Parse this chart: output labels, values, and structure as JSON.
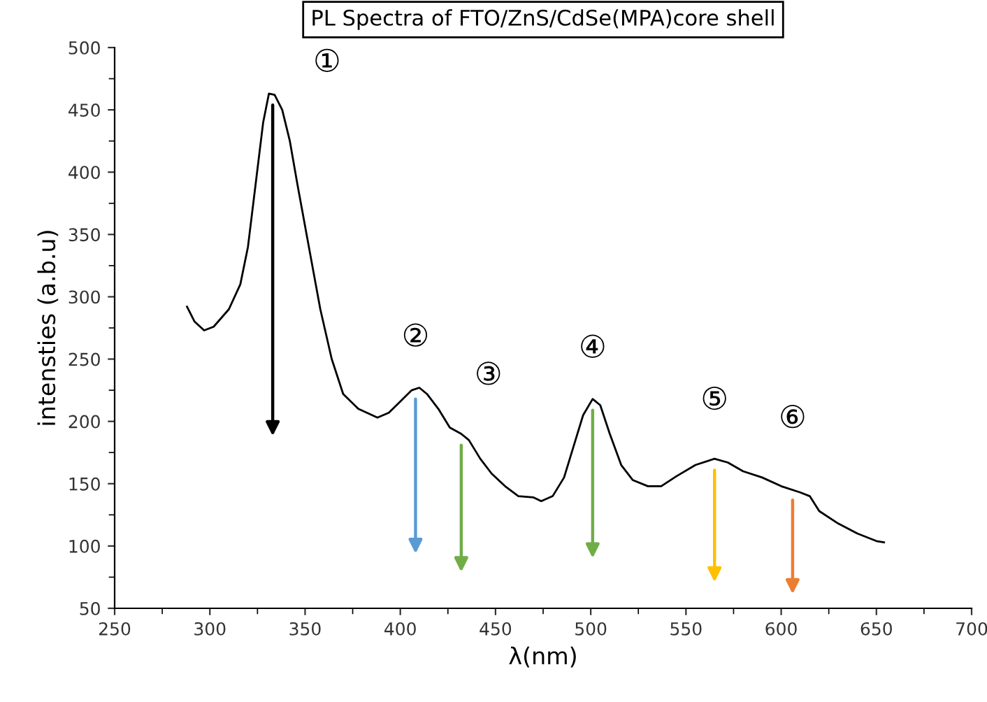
{
  "chart_data": {
    "type": "line",
    "title": "PL Spectra of FTO/ZnS/CdSe(MPA)core shell",
    "xlabel": "λ(nm)",
    "ylabel": "intensties (a.b.u)",
    "x": [
      288,
      292,
      297,
      302,
      310,
      316,
      320,
      324,
      328,
      331,
      334,
      338,
      342,
      346,
      352,
      358,
      364,
      370,
      378,
      388,
      394,
      400,
      406,
      410,
      414,
      420,
      426,
      432,
      436,
      442,
      448,
      455,
      462,
      470,
      474,
      480,
      486,
      492,
      496,
      501,
      505,
      510,
      516,
      522,
      530,
      537,
      545,
      555,
      565,
      572,
      580,
      590,
      600,
      610,
      615,
      620,
      630,
      640,
      650,
      654
    ],
    "series": [
      {
        "color": "#000000",
        "values": [
          292,
          280,
          273,
          276,
          290,
          310,
          340,
          390,
          440,
          463,
          462,
          450,
          425,
          390,
          340,
          290,
          250,
          222,
          210,
          203,
          207,
          216,
          225,
          227,
          222,
          210,
          195,
          190,
          185,
          170,
          158,
          148,
          140,
          139,
          136,
          140,
          155,
          185,
          205,
          218,
          213,
          190,
          165,
          153,
          148,
          148,
          156,
          165,
          170,
          167,
          160,
          155,
          148,
          143,
          140,
          128,
          118,
          110,
          104,
          103
        ]
      }
    ],
    "annotations": [
      {
        "text": "①",
        "x": 333,
        "y": 463
      },
      {
        "text": "②",
        "x": 408,
        "y": 227
      },
      {
        "text": "③",
        "x": 432,
        "y": 190
      },
      {
        "text": "④",
        "x": 501,
        "y": 218
      },
      {
        "text": "⑤",
        "x": 565,
        "y": 170
      },
      {
        "text": "⑥",
        "x": 606,
        "y": 146
      }
    ],
    "xlim": [
      250,
      700
    ],
    "xticks": [
      250,
      300,
      350,
      400,
      450,
      500,
      550,
      600,
      650,
      700
    ],
    "ylim": [
      50,
      500
    ],
    "yticks": [
      50,
      100,
      150,
      200,
      250,
      300,
      350,
      400,
      450,
      500
    ],
    "grid": false,
    "legend": false,
    "marker": "none",
    "line_style": "solid"
  }
}
